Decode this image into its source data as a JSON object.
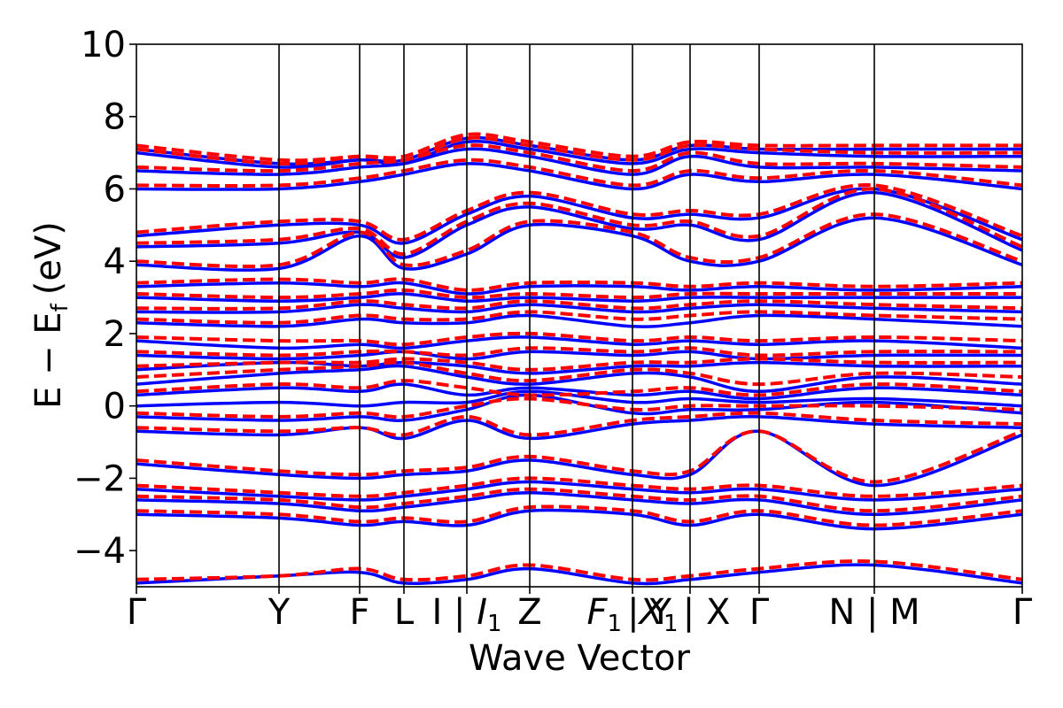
{
  "chart_data": {
    "type": "line",
    "title": "",
    "xlabel": "Wave Vector",
    "ylabel": "E − E",
    "ylabel_subscript": "f",
    "ylabel_unit": "(eV)",
    "ylim": [
      -5,
      10
    ],
    "yticks": [
      -4,
      -2,
      0,
      2,
      4,
      6,
      8,
      10
    ],
    "ytick_labels": [
      "−4",
      "−2",
      "0",
      "2",
      "4",
      "6",
      "8",
      "10"
    ],
    "xlim": [
      0,
      1
    ],
    "high_symmetry_points": [
      {
        "label": "Γ",
        "x": 0.0
      },
      {
        "label": "Y",
        "x": 0.161
      },
      {
        "label": "F",
        "x": 0.252
      },
      {
        "label": "L",
        "x": 0.302
      },
      {
        "label": "I | I₁",
        "x": 0.373
      },
      {
        "label": "Z",
        "x": 0.444
      },
      {
        "label": "F₁ | X₁",
        "x": 0.56
      },
      {
        "label": "Y | X",
        "x": 0.625
      },
      {
        "label": "Γ",
        "x": 0.703
      },
      {
        "label": "N | M",
        "x": 0.833
      },
      {
        "label": "Γ",
        "x": 1.0
      }
    ],
    "tick_text": {
      "gamma": "Γ",
      "Y": "Y",
      "F": "F",
      "L": "L",
      "I_sep": "I |",
      "I1_base": "I",
      "I1_sub": "1",
      "Z": "Z",
      "F1_base": "F",
      "F1_sub": "1",
      "sep": "|",
      "X1_base": "X",
      "X1_sub": "1",
      "YX": "Y | X",
      "NM": "N | M"
    },
    "series": [
      {
        "style": "solid",
        "color": "#0000ff"
      },
      {
        "style": "dashed",
        "color": "#ff0000"
      }
    ],
    "bands_blue": [
      [
        -4.9,
        -4.7,
        -4.6,
        -4.9,
        -4.8,
        -4.5,
        -4.9,
        -4.8,
        -4.6,
        -4.4,
        -4.9
      ],
      [
        -3.0,
        -3.1,
        -3.3,
        -3.2,
        -3.3,
        -2.9,
        -3.0,
        -3.3,
        -3.0,
        -3.4,
        -3.0
      ],
      [
        -2.6,
        -2.7,
        -2.9,
        -2.8,
        -2.6,
        -2.4,
        -2.6,
        -2.7,
        -2.6,
        -3.0,
        -2.6
      ],
      [
        -2.3,
        -2.5,
        -2.6,
        -2.5,
        -2.3,
        -2.1,
        -2.3,
        -2.4,
        -2.3,
        -2.6,
        -2.3
      ],
      [
        -1.6,
        -1.9,
        -2.0,
        -1.9,
        -1.8,
        -1.5,
        -1.9,
        -1.9,
        -0.7,
        -2.2,
        -0.8
      ],
      [
        -0.7,
        -0.8,
        -0.6,
        -0.9,
        -0.4,
        -0.9,
        -0.5,
        -0.4,
        -0.3,
        -0.5,
        -0.6
      ],
      [
        -0.3,
        -0.4,
        -0.3,
        -0.4,
        -0.1,
        0.3,
        -0.2,
        -0.1,
        -0.1,
        0.1,
        -0.2
      ],
      [
        0.0,
        0.1,
        0.0,
        0.1,
        0.1,
        0.4,
        0.1,
        0.2,
        0.1,
        0.2,
        0.0
      ],
      [
        0.3,
        0.5,
        0.4,
        0.6,
        0.3,
        0.5,
        0.3,
        0.4,
        0.2,
        0.5,
        0.3
      ],
      [
        0.6,
        0.9,
        1.0,
        1.1,
        0.8,
        0.6,
        0.9,
        0.8,
        0.4,
        0.8,
        0.6
      ],
      [
        1.0,
        1.2,
        1.1,
        1.2,
        1.1,
        0.9,
        1.1,
        1.1,
        1.2,
        1.1,
        1.1
      ],
      [
        1.4,
        1.3,
        1.4,
        1.5,
        1.3,
        1.5,
        1.4,
        1.5,
        1.3,
        1.4,
        1.4
      ],
      [
        1.8,
        1.6,
        1.7,
        1.6,
        1.8,
        1.9,
        1.7,
        1.8,
        1.7,
        1.8,
        1.6
      ],
      [
        2.3,
        2.2,
        2.4,
        2.3,
        2.3,
        2.5,
        2.2,
        2.3,
        2.5,
        2.4,
        2.2
      ],
      [
        2.6,
        2.6,
        2.8,
        2.7,
        2.6,
        2.8,
        2.6,
        2.7,
        2.8,
        2.7,
        2.6
      ],
      [
        3.0,
        2.9,
        3.0,
        3.1,
        2.9,
        3.0,
        2.9,
        3.0,
        3.0,
        3.0,
        3.0
      ],
      [
        3.3,
        3.4,
        3.3,
        3.4,
        3.1,
        3.3,
        3.3,
        3.2,
        3.3,
        3.2,
        3.3
      ],
      [
        3.9,
        3.8,
        4.7,
        3.8,
        4.2,
        5.0,
        4.7,
        4.0,
        4.0,
        5.2,
        3.9
      ],
      [
        4.4,
        4.5,
        4.8,
        4.1,
        5.0,
        5.5,
        4.9,
        5.0,
        4.6,
        5.9,
        4.3
      ],
      [
        4.7,
        5.0,
        5.0,
        4.5,
        5.3,
        5.8,
        5.2,
        5.3,
        5.2,
        6.0,
        4.6
      ],
      [
        6.0,
        6.0,
        6.2,
        6.4,
        6.7,
        6.5,
        6.0,
        6.4,
        6.2,
        6.4,
        6.0
      ],
      [
        6.5,
        6.4,
        6.6,
        6.7,
        7.1,
        6.9,
        6.4,
        6.9,
        6.6,
        6.6,
        6.5
      ],
      [
        7.0,
        6.6,
        6.8,
        6.7,
        7.3,
        7.1,
        6.7,
        7.1,
        7.0,
        6.9,
        6.9
      ],
      [
        7.1,
        6.7,
        6.8,
        6.8,
        7.4,
        7.2,
        6.8,
        7.2,
        7.1,
        7.1,
        7.1
      ]
    ],
    "bands_red": [
      [
        -4.8,
        -4.7,
        -4.5,
        -4.8,
        -4.7,
        -4.4,
        -4.8,
        -4.7,
        -4.5,
        -4.3,
        -4.8
      ],
      [
        -2.9,
        -3.0,
        -3.2,
        -3.1,
        -3.2,
        -2.8,
        -2.9,
        -3.2,
        -2.9,
        -3.3,
        -2.9
      ],
      [
        -2.5,
        -2.6,
        -2.8,
        -2.7,
        -2.5,
        -2.3,
        -2.5,
        -2.6,
        -2.5,
        -2.9,
        -2.5
      ],
      [
        -2.2,
        -2.4,
        -2.5,
        -2.4,
        -2.2,
        -2.0,
        -2.2,
        -2.3,
        -2.2,
        -2.5,
        -2.2
      ],
      [
        -1.5,
        -1.8,
        -1.9,
        -1.8,
        -1.7,
        -1.4,
        -1.8,
        -1.8,
        -0.7,
        -2.1,
        -0.7
      ],
      [
        -0.6,
        -0.7,
        -0.6,
        -0.8,
        -0.3,
        -0.8,
        -0.4,
        -0.3,
        -0.2,
        -0.4,
        -0.5
      ],
      [
        -0.2,
        -0.3,
        -0.2,
        -0.3,
        0.0,
        0.2,
        -0.1,
        0.0,
        0.0,
        0.0,
        -0.1
      ],
      [
        0.4,
        0.6,
        0.5,
        0.7,
        0.5,
        0.3,
        0.4,
        0.5,
        0.3,
        0.6,
        0.4
      ],
      [
        0.8,
        1.0,
        1.1,
        1.2,
        0.9,
        0.7,
        1.0,
        0.9,
        0.6,
        0.9,
        0.8
      ],
      [
        1.1,
        1.2,
        1.2,
        1.3,
        1.2,
        1.0,
        1.2,
        1.2,
        1.3,
        1.2,
        1.2
      ],
      [
        1.5,
        1.4,
        1.5,
        1.5,
        1.4,
        1.6,
        1.5,
        1.6,
        1.4,
        1.5,
        1.5
      ],
      [
        1.9,
        1.8,
        1.8,
        1.7,
        1.9,
        2.0,
        1.8,
        1.9,
        1.8,
        1.9,
        1.8
      ],
      [
        2.4,
        2.3,
        2.5,
        2.4,
        2.4,
        2.6,
        2.4,
        2.5,
        2.6,
        2.5,
        2.4
      ],
      [
        2.7,
        2.7,
        2.9,
        2.8,
        2.7,
        2.9,
        2.7,
        2.8,
        2.9,
        2.8,
        2.7
      ],
      [
        3.1,
        3.0,
        3.1,
        3.2,
        3.0,
        3.1,
        3.0,
        3.1,
        3.1,
        3.1,
        3.1
      ],
      [
        3.4,
        3.5,
        3.4,
        3.5,
        3.2,
        3.4,
        3.4,
        3.3,
        3.4,
        3.3,
        3.4
      ],
      [
        4.0,
        3.9,
        4.8,
        3.9,
        4.3,
        5.1,
        4.8,
        4.1,
        4.1,
        5.3,
        4.0
      ],
      [
        4.5,
        4.6,
        4.9,
        4.2,
        5.1,
        5.6,
        5.0,
        5.1,
        4.7,
        6.0,
        4.4
      ],
      [
        4.8,
        5.1,
        5.1,
        4.6,
        5.4,
        5.9,
        5.3,
        5.4,
        5.3,
        6.1,
        4.7
      ],
      [
        6.1,
        6.1,
        6.3,
        6.5,
        6.8,
        6.6,
        6.1,
        6.5,
        6.3,
        6.5,
        6.1
      ],
      [
        6.6,
        6.5,
        6.7,
        6.8,
        7.2,
        7.0,
        6.5,
        7.0,
        6.7,
        6.7,
        6.6
      ],
      [
        7.1,
        6.7,
        6.9,
        6.8,
        7.4,
        7.2,
        6.8,
        7.2,
        7.1,
        7.0,
        7.0
      ],
      [
        7.2,
        6.8,
        6.9,
        6.9,
        7.5,
        7.3,
        6.9,
        7.3,
        7.2,
        7.2,
        7.2
      ]
    ]
  }
}
